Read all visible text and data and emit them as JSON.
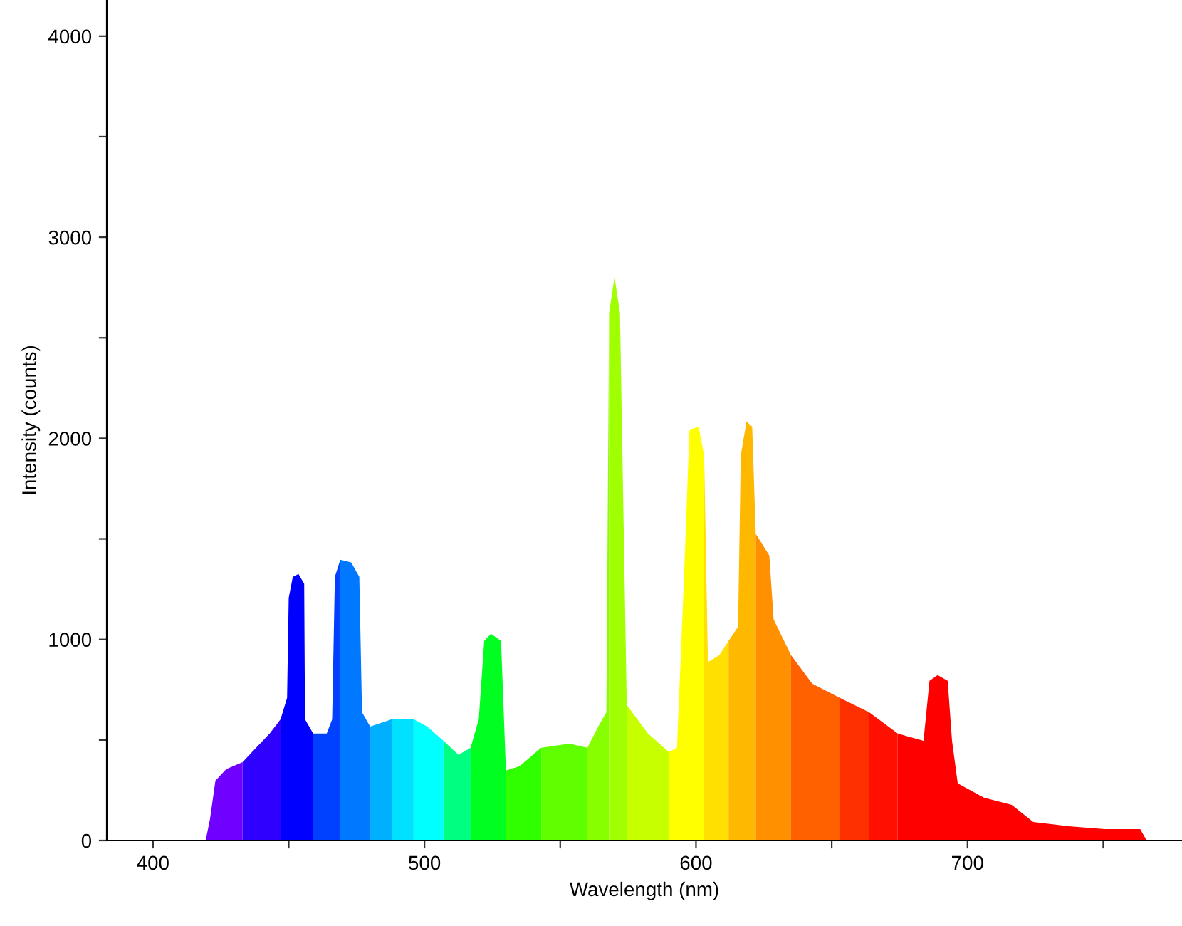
{
  "chart_data": {
    "type": "area",
    "xlabel": "Wavelength (nm)",
    "ylabel": "Intensity (counts)",
    "xlim": [
      383,
      779
    ],
    "ylim": [
      0,
      4180
    ],
    "xticks": [
      400,
      {
        "value": 450,
        "label": null
      },
      500,
      {
        "value": 550,
        "label": null
      },
      600,
      {
        "value": 650,
        "label": null
      },
      700,
      {
        "value": 750,
        "label": null
      }
    ],
    "yticks": [
      0,
      {
        "value": 500,
        "label": null
      },
      1000,
      {
        "value": 1500,
        "label": null
      },
      2000,
      {
        "value": 2500,
        "label": null
      },
      3000,
      {
        "value": 3500,
        "label": null
      },
      4000
    ],
    "series": [
      {
        "color": "#7000ff",
        "x": [
          419.4,
          421,
          423,
          427,
          433
        ],
        "values": [
          0,
          106,
          298,
          355,
          390
        ]
      },
      {
        "color": "#3000ff",
        "x": [
          433,
          438,
          443,
          447
        ],
        "values": [
          390,
          461,
          532,
          603
        ]
      },
      {
        "color": "#0000ff",
        "x": [
          447,
          449.4,
          450,
          451.5,
          453.6,
          455.7,
          456,
          459
        ],
        "values": [
          603,
          709,
          1206,
          1312,
          1326,
          1277,
          603,
          532
        ]
      },
      {
        "color": "#0040ff",
        "x": [
          459,
          464,
          466,
          467,
          469
        ],
        "values": [
          532,
          532,
          603,
          1312,
          1397
        ]
      },
      {
        "color": "#0078ff",
        "x": [
          469,
          473,
          476,
          477,
          480
        ],
        "values": [
          1397,
          1383,
          1312,
          638,
          567
        ]
      },
      {
        "color": "#00b0ff",
        "x": [
          480,
          488
        ],
        "values": [
          567,
          603
        ]
      },
      {
        "color": "#00e0ff",
        "x": [
          488,
          496
        ],
        "values": [
          603,
          603
        ]
      },
      {
        "color": "#00ffff",
        "x": [
          496,
          501,
          507
        ],
        "values": [
          603,
          567,
          496
        ]
      },
      {
        "color": "#00ff80",
        "x": [
          507,
          512.5,
          517
        ],
        "values": [
          496,
          426,
          461
        ]
      },
      {
        "color": "#00ff20",
        "x": [
          517,
          520,
          522,
          524.5,
          528.2,
          530
        ],
        "values": [
          461,
          603,
          993,
          1028,
          993,
          348
        ]
      },
      {
        "color": "#30ff00",
        "x": [
          530,
          535,
          543
        ],
        "values": [
          348,
          369,
          461
        ]
      },
      {
        "color": "#60ff00",
        "x": [
          543,
          553.4,
          560
        ],
        "values": [
          461,
          482,
          461
        ]
      },
      {
        "color": "#88ff00",
        "x": [
          560,
          564,
          567,
          568
        ],
        "values": [
          461,
          567,
          638,
          2624
        ]
      },
      {
        "color": "#a0ff00",
        "x": [
          568,
          570,
          572,
          574.5
        ],
        "values": [
          2624,
          2801,
          2624,
          674
        ]
      },
      {
        "color": "#c8ff00",
        "x": [
          574.5,
          582.3,
          590
        ],
        "values": [
          674,
          532,
          440
        ]
      },
      {
        "color": "#ffff00",
        "x": [
          590,
          593,
          595.5,
          597.6,
          601,
          603
        ],
        "values": [
          440,
          461,
          1277,
          2043,
          2057,
          1915
        ]
      },
      {
        "color": "#ffe000",
        "x": [
          603,
          604.4,
          608.6,
          612
        ],
        "values": [
          1915,
          887,
          922,
          993
        ]
      },
      {
        "color": "#ffb800",
        "x": [
          612,
          615.5,
          616.5,
          618.6,
          620.7,
          622
        ],
        "values": [
          993,
          1064,
          1915,
          2085,
          2057,
          1525
        ]
      },
      {
        "color": "#ff9000",
        "x": [
          622,
          627,
          628.6,
          635
        ],
        "values": [
          1525,
          1418,
          1099,
          922
        ]
      },
      {
        "color": "#ff6000",
        "x": [
          635,
          642.8,
          653
        ],
        "values": [
          922,
          780,
          709
        ]
      },
      {
        "color": "#ff3000",
        "x": [
          653,
          663.8
        ],
        "values": [
          709,
          638
        ]
      },
      {
        "color": "#ff1000",
        "x": [
          663.8,
          674.3
        ],
        "values": [
          638,
          532
        ]
      },
      {
        "color": "#ff0000",
        "x": [
          674.3,
          683.8,
          686,
          689,
          692.7,
          694.3,
          696.4,
          706,
          716.3,
          724.2,
          737.4,
          750.5,
          763.6,
          766
        ],
        "values": [
          532,
          496,
          794,
          823,
          794,
          496,
          284,
          213,
          177,
          92,
          71,
          57,
          57,
          0
        ]
      }
    ]
  }
}
